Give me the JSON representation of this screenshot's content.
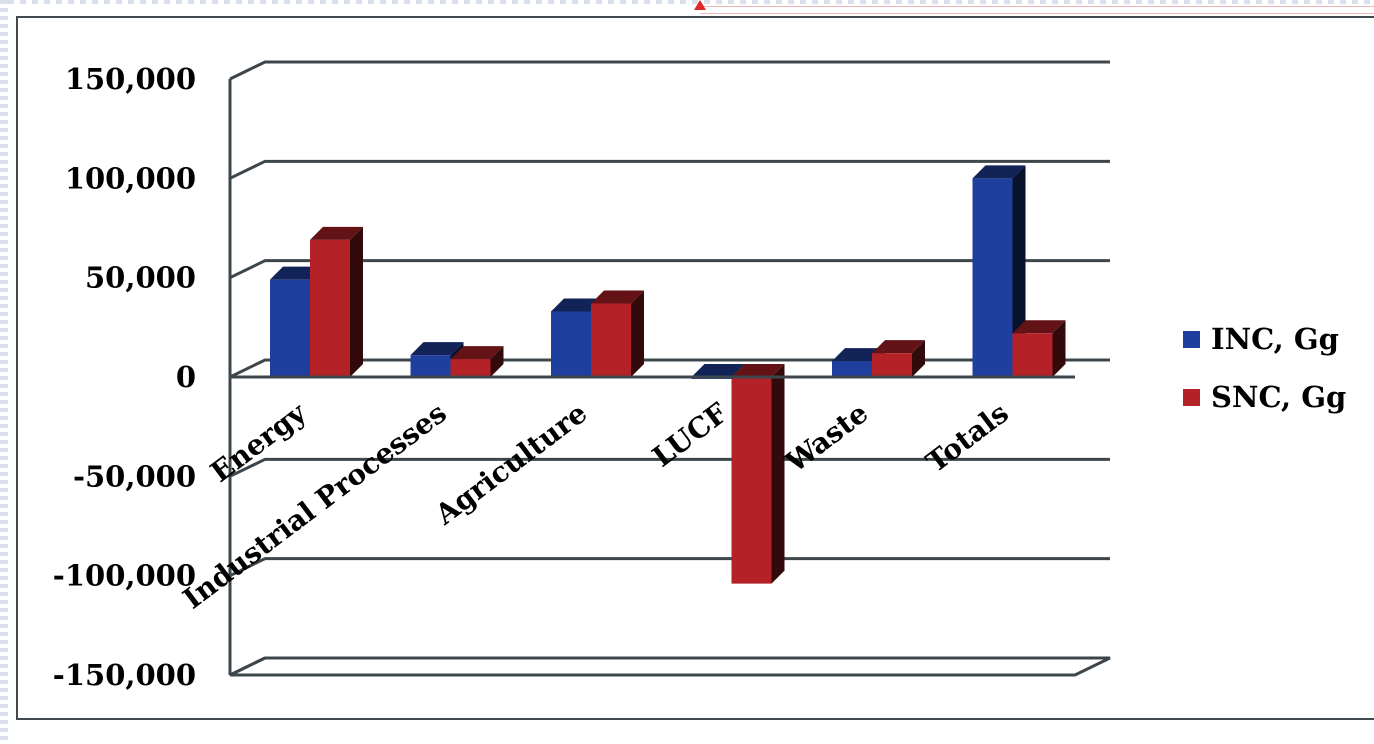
{
  "chart_data": {
    "type": "bar",
    "title": "",
    "xlabel": "",
    "ylabel": "",
    "categories": [
      "Energy",
      "Industrial Processes",
      "Agriculture",
      "LUCF",
      "Waste",
      "Totals"
    ],
    "series": [
      {
        "name": "INC, Gg",
        "color": "#1f3f9e",
        "values": [
          49000,
          11000,
          33000,
          -1000,
          8000,
          100000
        ]
      },
      {
        "name": "SNC, Gg",
        "color": "#b42228",
        "values": [
          69000,
          9000,
          37000,
          -104000,
          12000,
          22000
        ]
      }
    ],
    "ylim": [
      -150000,
      150000
    ],
    "yticks": [
      150000,
      100000,
      50000,
      0,
      -50000,
      -100000,
      -150000
    ],
    "ytick_labels": [
      "150,000",
      "100,000",
      "50,000",
      "0",
      "-50,000",
      "-100,000",
      "-150,000"
    ],
    "grid": true,
    "three_d": true,
    "legend": "right"
  }
}
